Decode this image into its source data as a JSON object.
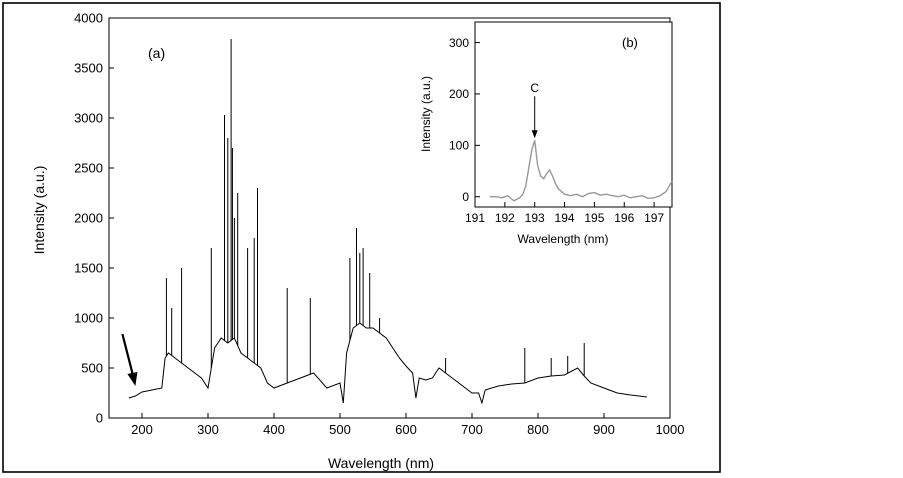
{
  "chart_data": [
    {
      "type": "line",
      "panel_label": "(a)",
      "xlabel": "Wavelength (nm)",
      "ylabel": "Intensity (a.u.)",
      "xlim": [
        150,
        1000
      ],
      "ylim": [
        0,
        4000
      ],
      "xticks": [
        "200",
        "300",
        "400",
        "500",
        "600",
        "700",
        "800",
        "900",
        "1000"
      ],
      "yticks": [
        "0",
        "500",
        "1000",
        "1500",
        "2000",
        "2500",
        "3000",
        "3500",
        "4000"
      ],
      "line_color": "#000000",
      "arrow_points_to": [
        190,
        280
      ],
      "series": [
        {
          "x": [
            180,
            190,
            200,
            215,
            230,
            235,
            240,
            250,
            260,
            270,
            280,
            290,
            300,
            310,
            320,
            330,
            340,
            350,
            360,
            370,
            380,
            390,
            400,
            420,
            440,
            460,
            480,
            500,
            505,
            510,
            520,
            530,
            540,
            550,
            560,
            570,
            580,
            590,
            600,
            610,
            615,
            620,
            630,
            640,
            650,
            660,
            670,
            680,
            700,
            710,
            715,
            720,
            740,
            760,
            780,
            800,
            820,
            840,
            860,
            870,
            880,
            900,
            920,
            940,
            965
          ],
          "y": [
            200,
            220,
            260,
            280,
            300,
            600,
            650,
            600,
            550,
            500,
            450,
            400,
            300,
            700,
            800,
            750,
            800,
            650,
            600,
            550,
            500,
            350,
            300,
            350,
            400,
            450,
            300,
            350,
            150,
            650,
            900,
            950,
            900,
            900,
            850,
            800,
            700,
            600,
            520,
            450,
            200,
            400,
            380,
            400,
            500,
            450,
            400,
            350,
            250,
            250,
            150,
            280,
            320,
            340,
            350,
            400,
            420,
            430,
            500,
            420,
            350,
            300,
            250,
            230,
            210
          ]
        }
      ],
      "peaks": {
        "x": [
          237,
          245,
          260,
          305,
          325,
          330,
          335,
          337,
          340,
          345,
          360,
          370,
          375,
          420,
          455,
          515,
          525,
          530,
          535,
          545,
          560,
          660,
          780,
          820,
          845,
          870
        ],
        "y": [
          1400,
          1100,
          1500,
          1700,
          3030,
          2800,
          3790,
          2700,
          2000,
          2250,
          1700,
          1800,
          2300,
          1300,
          1200,
          1600,
          1900,
          1650,
          1700,
          1450,
          1000,
          600,
          700,
          600,
          620,
          750
        ]
      }
    },
    {
      "type": "line",
      "panel_label": "(b)",
      "xlabel": "Wavelength (nm)",
      "ylabel": "Intensity (a.u.)",
      "xlim": [
        191,
        197.6
      ],
      "ylim": [
        -20,
        340
      ],
      "xticks": [
        "191",
        "192",
        "193",
        "194",
        "195",
        "196",
        "197"
      ],
      "yticks": [
        "0",
        "100",
        "200",
        "300"
      ],
      "line_color": "#999999",
      "annotation": {
        "text": "C",
        "x": 193.0,
        "y": 110
      },
      "series": [
        {
          "x": [
            191.5,
            191.7,
            191.9,
            192.1,
            192.3,
            192.4,
            192.5,
            192.6,
            192.7,
            192.8,
            192.9,
            193.0,
            193.1,
            193.2,
            193.3,
            193.4,
            193.5,
            193.6,
            193.7,
            193.8,
            194.0,
            194.2,
            194.4,
            194.6,
            194.8,
            195.0,
            195.2,
            195.4,
            195.6,
            195.8,
            196.0,
            196.2,
            196.4,
            196.6,
            196.8,
            197.0,
            197.2,
            197.4,
            197.6
          ],
          "y": [
            0,
            0,
            -2,
            2,
            -8,
            -5,
            -2,
            5,
            20,
            55,
            90,
            110,
            60,
            40,
            35,
            45,
            52,
            40,
            25,
            15,
            5,
            2,
            5,
            0,
            6,
            8,
            3,
            5,
            2,
            0,
            3,
            -2,
            0,
            2,
            -3,
            -2,
            2,
            10,
            30
          ]
        }
      ]
    }
  ]
}
